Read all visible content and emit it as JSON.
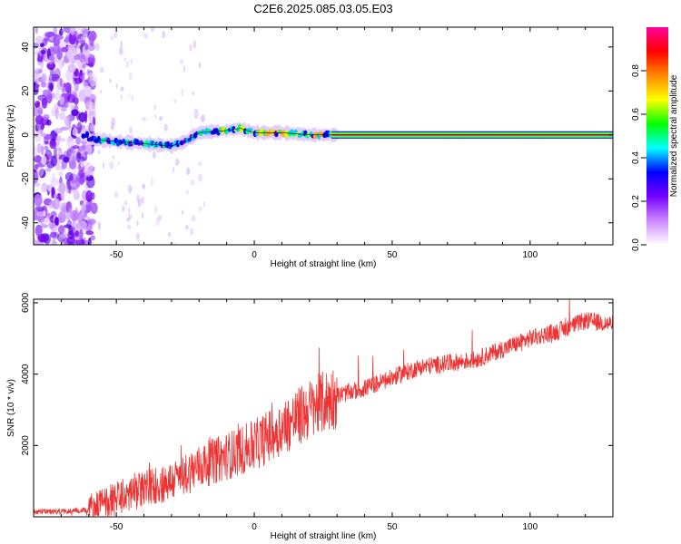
{
  "title": "C2E6.2025.085.03.05.E03",
  "chart_data": [
    {
      "type": "heatmap",
      "xlabel": "Height of straight line (km)",
      "ylabel": "Frequency (Hz)",
      "xlim": [
        -80,
        130
      ],
      "ylim": [
        -50,
        49
      ],
      "xticks": [
        -50,
        0,
        50,
        100
      ],
      "yticks": [
        -40,
        -20,
        0,
        20,
        40
      ],
      "colorbar": {
        "label": "Normalized spectral amplitude",
        "range": [
          0,
          1
        ],
        "ticks": [
          "0.0",
          "0.2",
          "0.4",
          "0.6",
          "0.8"
        ],
        "colors": [
          "#ffffff",
          "#cc88ff",
          "#7700ff",
          "#0000ff",
          "#00ffff",
          "#00ff00",
          "#ffff00",
          "#ff8800",
          "#ff0000",
          "#ff0099"
        ]
      },
      "ridge": {
        "frequency": 0,
        "points": [
          [
            -60,
            -2
          ],
          [
            -50,
            -3
          ],
          [
            -40,
            -4
          ],
          [
            -30,
            -5
          ],
          [
            -25,
            -3
          ],
          [
            -20,
            1
          ],
          [
            -10,
            2
          ],
          [
            -5,
            3
          ],
          [
            0,
            1
          ],
          [
            10,
            1
          ],
          [
            20,
            0
          ],
          [
            30,
            0
          ],
          [
            40,
            0
          ],
          [
            60,
            0
          ],
          [
            80,
            0
          ],
          [
            100,
            0
          ],
          [
            130,
            0
          ]
        ]
      }
    },
    {
      "type": "line",
      "xlabel": "Height of straight line (km)",
      "ylabel": "SNR (10 * v/v)",
      "xlim": [
        -80,
        130
      ],
      "ylim": [
        0,
        6100
      ],
      "xticks": [
        -50,
        0,
        50,
        100
      ],
      "yticks": [
        2000,
        4000,
        6000
      ],
      "color": "#ee3333",
      "trend": [
        [
          -80,
          150
        ],
        [
          -70,
          150
        ],
        [
          -60,
          200
        ],
        [
          -50,
          500
        ],
        [
          -40,
          800
        ],
        [
          -30,
          1000
        ],
        [
          -20,
          1400
        ],
        [
          -10,
          1700
        ],
        [
          0,
          2000
        ],
        [
          10,
          2500
        ],
        [
          20,
          3000
        ],
        [
          30,
          3400
        ],
        [
          40,
          3600
        ],
        [
          50,
          3900
        ],
        [
          60,
          4200
        ],
        [
          70,
          4300
        ],
        [
          80,
          4400
        ],
        [
          90,
          4700
        ],
        [
          100,
          5000
        ],
        [
          110,
          5200
        ],
        [
          120,
          5500
        ],
        [
          130,
          5400
        ]
      ]
    }
  ]
}
